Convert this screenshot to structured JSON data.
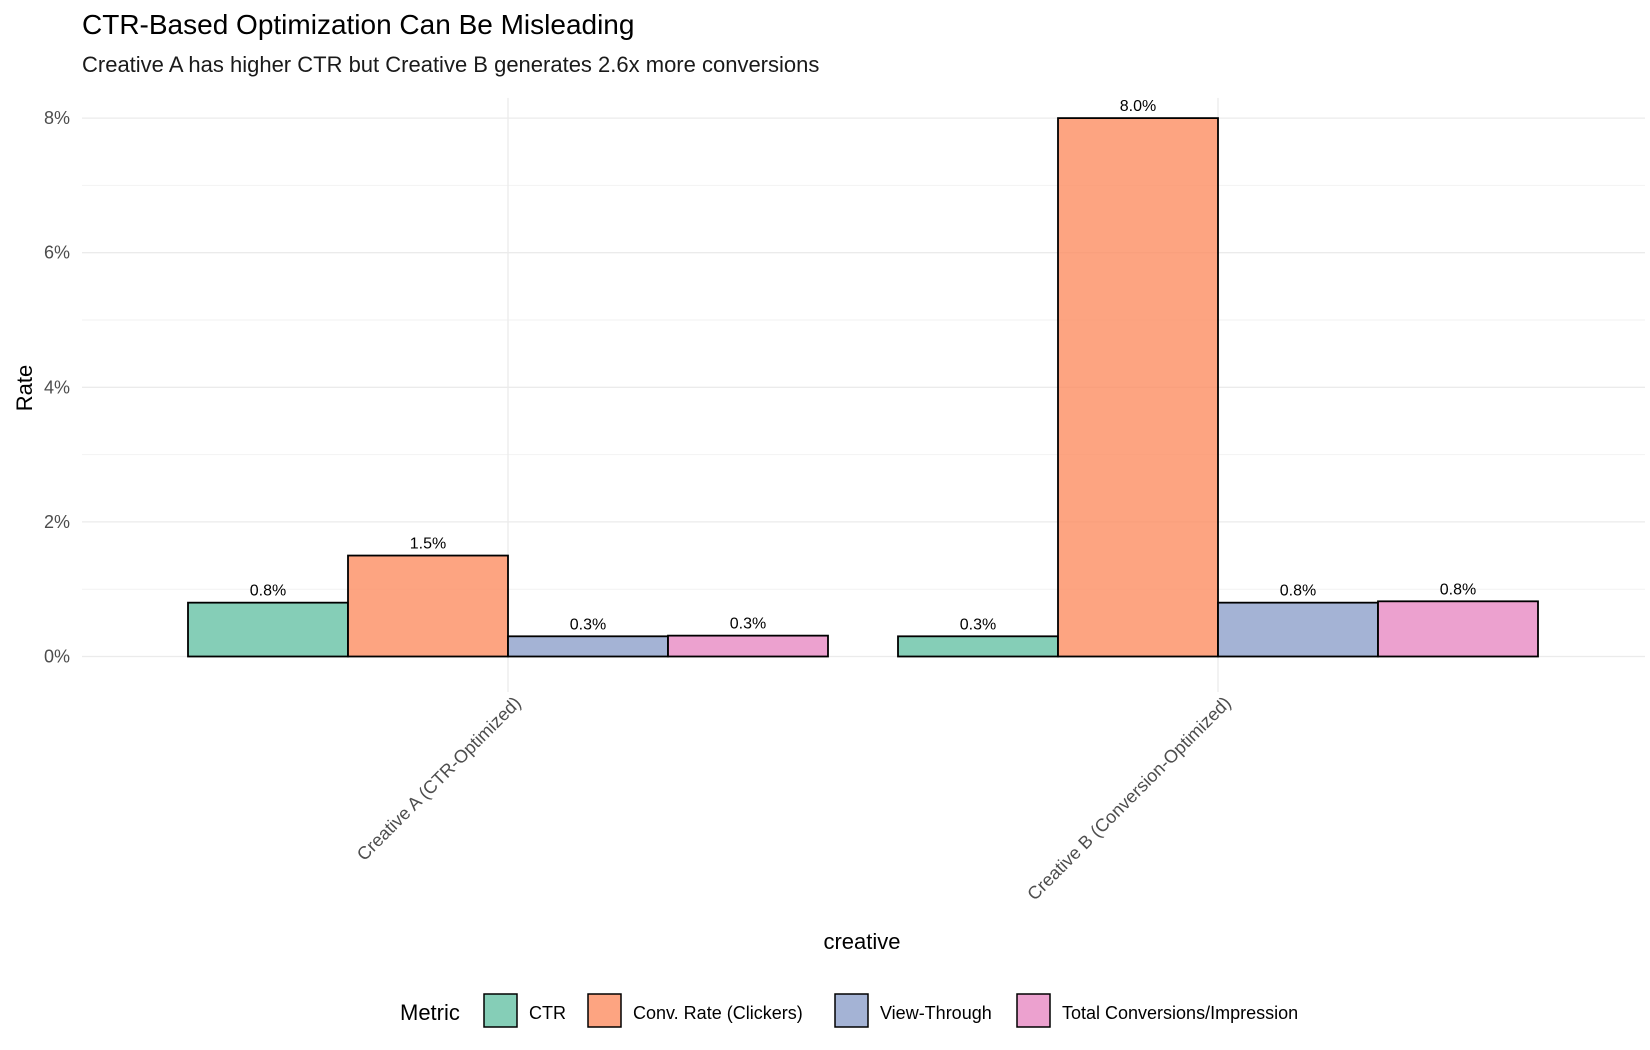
{
  "chart_data": {
    "type": "bar",
    "title": "CTR-Based Optimization Can Be Misleading",
    "subtitle": "Creative A has higher CTR but Creative B generates 2.6x more conversions",
    "xlabel": "creative",
    "ylabel": "Rate",
    "categories": [
      "Creative A (CTR-Optimized)",
      "Creative B (Conversion-Optimized)"
    ],
    "ylim": [
      0,
      8.3
    ],
    "yticks": [
      0,
      2,
      4,
      6,
      8
    ],
    "ytick_labels": [
      "0%",
      "2%",
      "4%",
      "6%",
      "8%"
    ],
    "grid": true,
    "legend_title": "Metric",
    "legend_position": "bottom",
    "series": [
      {
        "name": "CTR",
        "color": "#66c2a5",
        "values": [
          0.8,
          0.3
        ],
        "labels": [
          "0.8%",
          "0.3%"
        ]
      },
      {
        "name": "Conv. Rate (Clickers)",
        "color": "#fc8d62",
        "values": [
          1.5,
          8.0
        ],
        "labels": [
          "1.5%",
          "8.0%"
        ]
      },
      {
        "name": "View-Through",
        "color": "#8da0cb",
        "values": [
          0.3,
          0.8
        ],
        "labels": [
          "0.3%",
          "0.8%"
        ]
      },
      {
        "name": "Total Conversions/Impression",
        "color": "#e78ac3",
        "values": [
          0.31,
          0.82
        ],
        "labels": [
          "0.3%",
          "0.8%"
        ]
      }
    ]
  }
}
